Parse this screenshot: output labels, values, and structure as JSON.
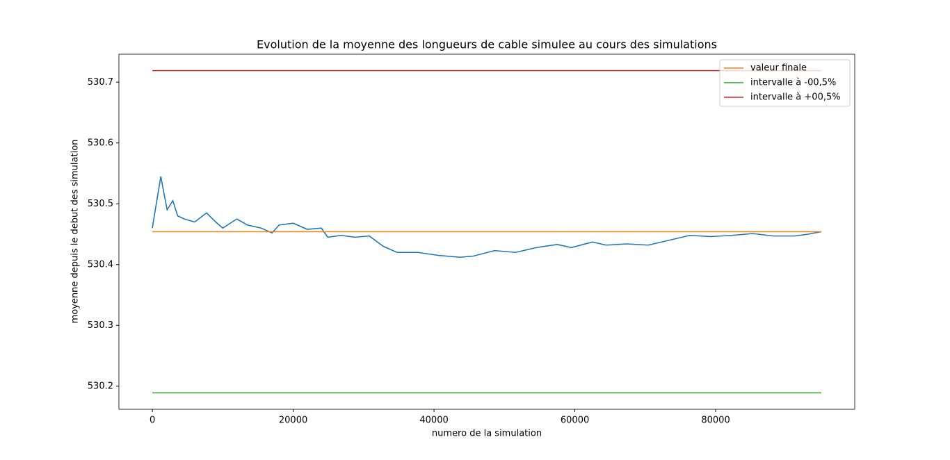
{
  "chart_data": {
    "type": "line",
    "title": "Evolution de la moyenne des longueurs de cable simulee au cours des simulations",
    "x_label": "numero de la simulation",
    "y_label": "moyenne depuis le debut des simulation",
    "xlim": [
      -4750,
      99750
    ],
    "ylim": [
      530.162,
      530.746
    ],
    "xticks": [
      0,
      20000,
      40000,
      60000,
      80000
    ],
    "yticks": [
      530.2,
      530.3,
      530.4,
      530.5,
      530.6,
      530.7
    ],
    "legend": "upper right",
    "series": [
      {
        "color": "#1f77b4",
        "x": [
          0,
          200,
          1200,
          1600,
          2100,
          2900,
          3600,
          4550,
          6000,
          7700,
          9000,
          10000,
          12000,
          13500,
          15450,
          17000,
          18000,
          20000,
          22000,
          24000,
          24900,
          26800,
          28800,
          30800,
          32800,
          34750,
          37700,
          40700,
          43700,
          45600,
          48600,
          51600,
          54550,
          57500,
          59500,
          62500,
          64450,
          67400,
          70400,
          73400,
          76300,
          79300,
          82300,
          85250,
          88200,
          91200,
          93150,
          95000
        ],
        "values": [
          530.46,
          530.475,
          530.545,
          530.52,
          530.49,
          530.505,
          530.48,
          530.475,
          530.47,
          530.485,
          530.47,
          530.46,
          530.475,
          530.465,
          530.46,
          530.452,
          530.465,
          530.468,
          530.458,
          530.46,
          530.445,
          530.448,
          530.445,
          530.447,
          530.43,
          530.42,
          530.42,
          530.415,
          530.412,
          530.414,
          530.423,
          530.42,
          530.428,
          530.433,
          530.428,
          530.437,
          530.432,
          530.434,
          530.432,
          530.44,
          530.448,
          530.446,
          530.448,
          530.451,
          530.447,
          530.447,
          530.45,
          530.454
        ]
      },
      {
        "name": "valeur finale",
        "color": "#ff7f0e",
        "x": [
          0,
          95000
        ],
        "values": [
          530.454,
          530.454
        ]
      },
      {
        "name": "intervalle à -00,5%",
        "color": "#2ca02c",
        "x": [
          0,
          95000
        ],
        "values": [
          530.189,
          530.189
        ]
      },
      {
        "name": "intervalle à +00,5%",
        "color": "#d62728",
        "x": [
          0,
          95000
        ],
        "values": [
          530.719,
          530.719
        ]
      }
    ]
  }
}
